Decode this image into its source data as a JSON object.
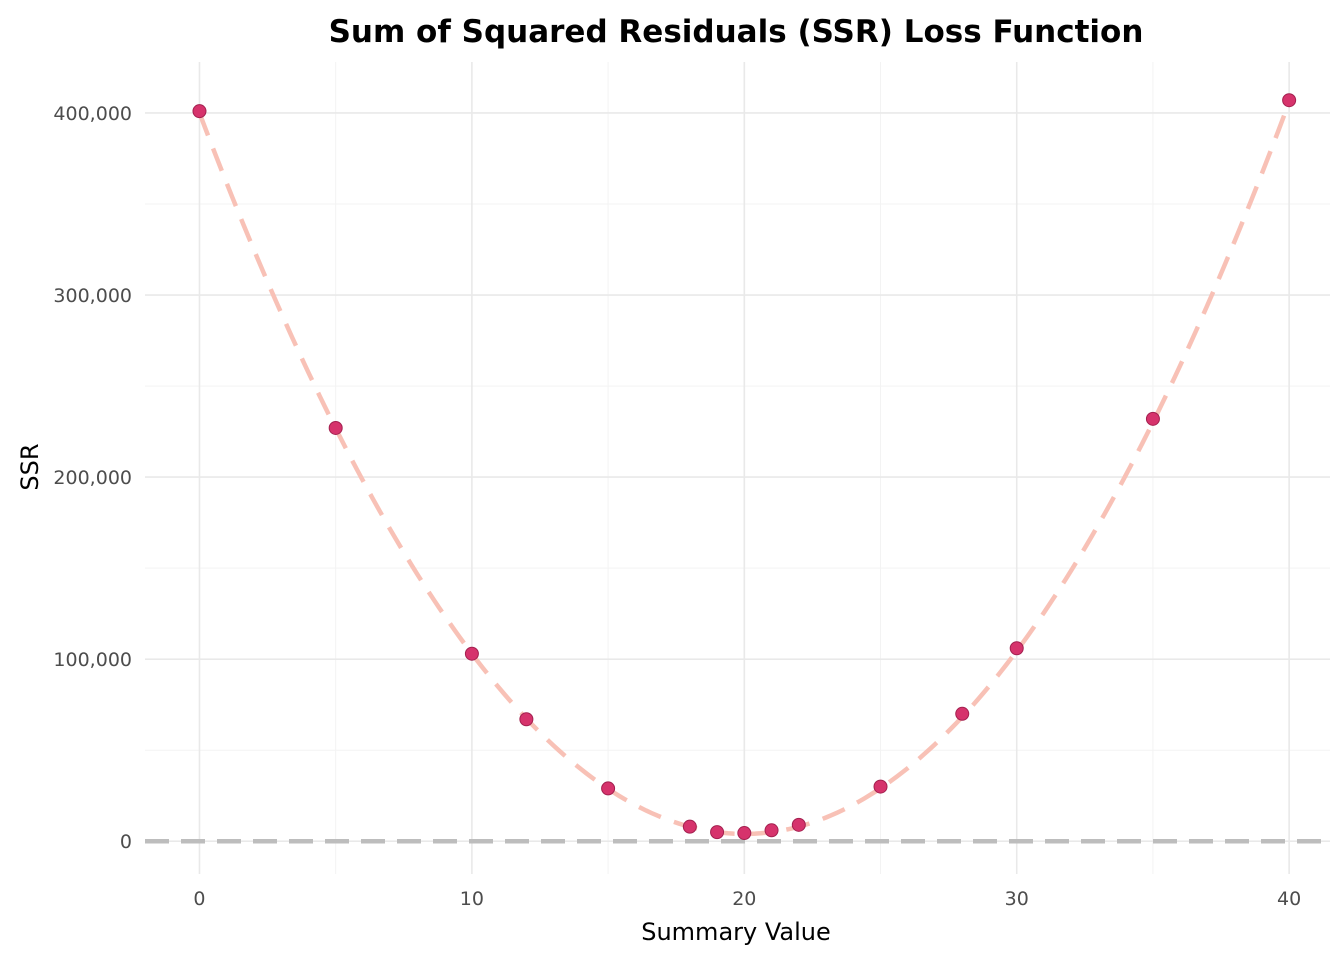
{
  "chart_data": {
    "type": "scatter",
    "title": "Sum of Squared Residuals (SSR) Loss Function",
    "xlabel": "Summary Value",
    "ylabel": "SSR",
    "xlim": [
      -2,
      41.5
    ],
    "ylim": [
      -18000,
      428000
    ],
    "x_ticks": [
      0,
      10,
      20,
      30,
      40
    ],
    "x_minor_ticks": [
      5,
      15,
      25,
      35
    ],
    "y_ticks": [
      0,
      100000,
      200000,
      300000,
      400000
    ],
    "y_tick_labels": [
      "0",
      "100,000",
      "200,000",
      "300,000",
      "400,000"
    ],
    "y_minor_ticks": [
      50000,
      150000,
      250000,
      350000
    ],
    "grid": true,
    "legend": "none",
    "reference_line": {
      "y": 0,
      "style": "dashed",
      "color": "#bdbdbd"
    },
    "curve": {
      "style": "dashed",
      "color": "#f8c1b6",
      "x_min": 0,
      "x_max": 40,
      "y_at_min": 400000,
      "y_at_max": 406000,
      "x_at_lowest": 20,
      "y_at_lowest": 4000
    },
    "point_color": "#d6336c",
    "point_outline": "#a3204f",
    "series": [
      {
        "x": [
          0,
          5,
          10,
          12,
          15,
          18,
          19,
          20,
          21,
          22,
          25,
          28,
          30,
          35,
          40
        ],
        "y": [
          401000,
          227000,
          103000,
          67000,
          29000,
          8000,
          5000,
          4500,
          6000,
          9000,
          30000,
          70000,
          106000,
          232000,
          407000
        ]
      }
    ]
  }
}
